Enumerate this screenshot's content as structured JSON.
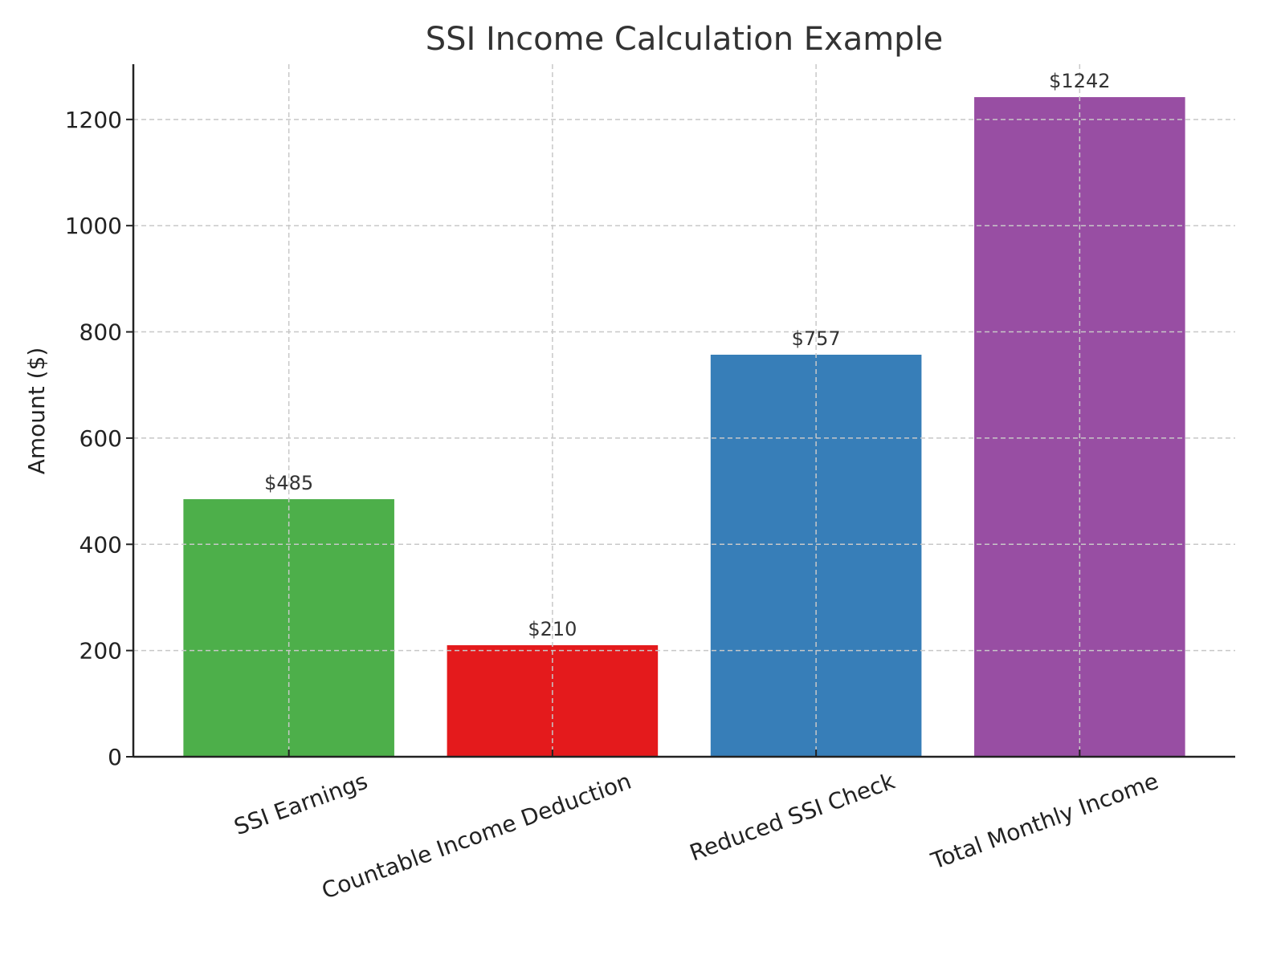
{
  "chart_data": {
    "type": "bar",
    "title": "SSI Income Calculation Example",
    "xlabel": "",
    "ylabel": "Amount ($)",
    "categories": [
      "SSI Earnings",
      "Countable Income Deduction",
      "Reduced SSI Check",
      "Total Monthly Income"
    ],
    "values": [
      485,
      210,
      757,
      1242
    ],
    "data_labels": [
      "$485",
      "$210",
      "$757",
      "$1242"
    ],
    "colors": [
      "#4daf4a",
      "#e41a1c",
      "#377eb8",
      "#984ea3"
    ],
    "ylim": [
      0,
      1304
    ],
    "yticks": [
      0,
      200,
      400,
      600,
      800,
      1000,
      1200
    ],
    "ytick_labels": [
      "0",
      "200",
      "400",
      "600",
      "800",
      "1000",
      "1200"
    ],
    "xtick_rotation_deg": 20,
    "grid": true,
    "grid_style": "dashed"
  }
}
